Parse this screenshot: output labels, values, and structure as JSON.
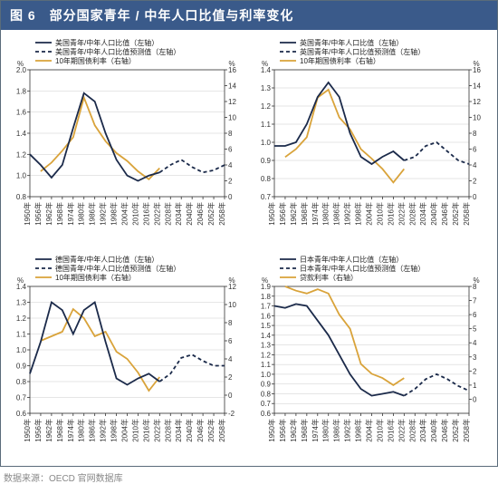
{
  "title": "图 6　部分国家青年 / 中年人口比值与利率变化",
  "source": "数据来源：OECD 官网数据库",
  "colors": {
    "title_bg": "#3a5a8a",
    "title_fg": "#ffffff",
    "border": "#5a6b7a",
    "axis": "#333333",
    "grid": "#cccccc",
    "series_ratio": "#1b2a4a",
    "series_forecast": "#1b2a4a",
    "series_rate": "#d9a33a",
    "legend_text": "#222222",
    "tick_text": "#333333",
    "source_text": "#888888"
  },
  "style": {
    "line_width_ratio": 1.8,
    "line_width_rate": 1.8,
    "dash": "4,3",
    "tick_fontsize": 8,
    "legend_fontsize": 8,
    "x_label_rotate": -90
  },
  "x_years": [
    1950,
    1956,
    1962,
    1968,
    1974,
    1980,
    1986,
    1992,
    1998,
    2004,
    2010,
    2016,
    2022,
    2028,
    2034,
    2040,
    2046,
    2052,
    2058
  ],
  "x_labels": [
    "1950年",
    "1956年",
    "1962年",
    "1968年",
    "1974年",
    "1980年",
    "1986年",
    "1992年",
    "1998年",
    "2004年",
    "2010年",
    "2016年",
    "2022年",
    "2028年",
    "2034年",
    "2040年",
    "2046年",
    "2052年",
    "2058年"
  ],
  "charts": [
    {
      "key": "us",
      "legend": [
        "美国青年/中年人口比值（左轴）",
        "美国青年/中年人口比值预测值（左轴）",
        "10年期国债利率（右轴）"
      ],
      "left_label": "%",
      "right_label": "%",
      "left_lim": [
        0.8,
        2.0
      ],
      "left_ticks": [
        0.8,
        1.0,
        1.2,
        1.4,
        1.6,
        1.8,
        2.0
      ],
      "right_lim": [
        0,
        16
      ],
      "right_ticks": [
        0,
        2,
        4,
        6,
        8,
        10,
        12,
        14,
        16
      ],
      "ratio": [
        1.2,
        1.1,
        0.98,
        1.1,
        1.45,
        1.78,
        1.7,
        1.4,
        1.15,
        1.0,
        0.95,
        1.0,
        1.03,
        null,
        null,
        null,
        null,
        null,
        null
      ],
      "forecast": [
        null,
        null,
        null,
        null,
        null,
        null,
        null,
        null,
        null,
        null,
        null,
        null,
        1.03,
        1.1,
        1.15,
        1.08,
        1.03,
        1.05,
        1.1
      ],
      "rate": [
        null,
        3.2,
        4.3,
        5.8,
        7.5,
        12.5,
        9.0,
        7.0,
        5.5,
        4.5,
        3.2,
        2.2,
        3.6,
        null,
        null,
        null,
        null,
        null,
        null
      ]
    },
    {
      "key": "uk",
      "legend": [
        "英国青年/中年人口比值（左轴）",
        "英国青年/中年人口比值预测值（左轴）",
        "10年期国债利率（右轴）"
      ],
      "left_label": "%",
      "right_label": "%",
      "left_lim": [
        0.7,
        1.4
      ],
      "left_ticks": [
        0.7,
        0.8,
        0.9,
        1.0,
        1.1,
        1.2,
        1.3,
        1.4
      ],
      "right_lim": [
        0,
        16
      ],
      "right_ticks": [
        0,
        2,
        4,
        6,
        8,
        10,
        12,
        14,
        16
      ],
      "ratio": [
        0.98,
        0.98,
        1.0,
        1.1,
        1.25,
        1.33,
        1.25,
        1.05,
        0.92,
        0.88,
        0.92,
        0.95,
        0.9,
        null,
        null,
        null,
        null,
        null,
        null
      ],
      "forecast": [
        null,
        null,
        null,
        null,
        null,
        null,
        null,
        null,
        null,
        null,
        null,
        null,
        0.9,
        0.92,
        0.98,
        1.0,
        0.95,
        0.9,
        0.88
      ],
      "rate": [
        null,
        5.0,
        6.0,
        7.5,
        12.5,
        13.5,
        10.0,
        8.5,
        6.0,
        4.8,
        3.5,
        1.8,
        3.5,
        null,
        null,
        null,
        null,
        null,
        null
      ]
    },
    {
      "key": "de",
      "legend": [
        "德国青年/中年人口比值（左轴）",
        "德国青年/中年人口比值预测值（左轴）",
        "10年期国债利率（右轴）"
      ],
      "left_label": "%",
      "right_label": "%",
      "left_lim": [
        0.6,
        1.4
      ],
      "left_ticks": [
        0.6,
        0.7,
        0.8,
        0.9,
        1.0,
        1.1,
        1.2,
        1.3,
        1.4
      ],
      "right_lim": [
        -2,
        12
      ],
      "right_ticks": [
        -2,
        0,
        2,
        4,
        6,
        8,
        10,
        12
      ],
      "ratio": [
        0.85,
        1.05,
        1.3,
        1.25,
        1.1,
        1.25,
        1.3,
        1.05,
        0.82,
        0.78,
        0.82,
        0.85,
        0.8,
        null,
        null,
        null,
        null,
        null,
        null
      ],
      "forecast": [
        null,
        null,
        null,
        null,
        null,
        null,
        null,
        null,
        null,
        null,
        null,
        null,
        0.8,
        0.85,
        0.95,
        0.97,
        0.93,
        0.9,
        0.9
      ],
      "rate": [
        null,
        6.0,
        6.5,
        7.0,
        9.5,
        8.5,
        6.5,
        7.0,
        4.8,
        4.0,
        2.5,
        0.5,
        2.0,
        null,
        null,
        null,
        null,
        null,
        null
      ]
    },
    {
      "key": "jp",
      "legend": [
        "日本青年/中年人口比值（左轴）",
        "日本青年/中年人口比值预测值（左轴）",
        "贷款利率（右轴）"
      ],
      "left_label": "%",
      "right_label": "%",
      "left_lim": [
        0.6,
        1.9
      ],
      "left_ticks": [
        0.6,
        0.7,
        0.8,
        0.9,
        1.0,
        1.1,
        1.2,
        1.3,
        1.4,
        1.5,
        1.6,
        1.7,
        1.8,
        1.9
      ],
      "right_lim": [
        -1,
        8
      ],
      "right_ticks": [
        0,
        1,
        2,
        3,
        4,
        5,
        6,
        7,
        8
      ],
      "ratio": [
        1.7,
        1.68,
        1.72,
        1.7,
        1.55,
        1.4,
        1.2,
        1.0,
        0.85,
        0.78,
        0.8,
        0.82,
        0.78,
        null,
        null,
        null,
        null,
        null,
        null
      ],
      "forecast": [
        null,
        null,
        null,
        null,
        null,
        null,
        null,
        null,
        null,
        null,
        null,
        null,
        0.78,
        0.85,
        0.95,
        1.0,
        0.95,
        0.88,
        0.83
      ],
      "rate": [
        null,
        8.0,
        7.7,
        7.5,
        7.8,
        7.5,
        6.0,
        5.0,
        2.5,
        1.8,
        1.5,
        1.0,
        1.5,
        null,
        null,
        null,
        null,
        null,
        null
      ]
    }
  ]
}
